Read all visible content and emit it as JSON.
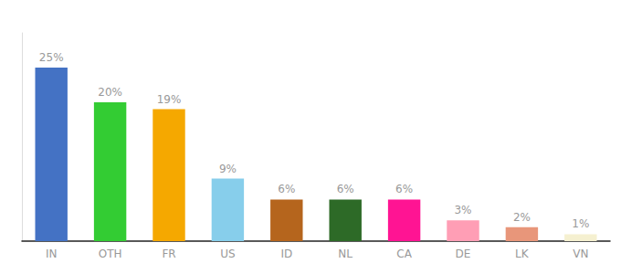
{
  "chart_data": {
    "type": "bar",
    "categories": [
      "IN",
      "OTH",
      "FR",
      "US",
      "ID",
      "NL",
      "CA",
      "DE",
      "LK",
      "VN"
    ],
    "values": [
      25,
      20,
      19,
      9,
      6,
      6,
      6,
      3,
      2,
      1
    ],
    "value_labels": [
      "25%",
      "20%",
      "19%",
      "9%",
      "6%",
      "6%",
      "6%",
      "3%",
      "2%",
      "1%"
    ],
    "colors": [
      "#4472c4",
      "#33cc33",
      "#f5a800",
      "#87ceeb",
      "#b5651d",
      "#2d6a27",
      "#ff1493",
      "#ff9eb5",
      "#e8967a",
      "#f5f0d0"
    ],
    "ylim": [
      0,
      30
    ],
    "grid": false,
    "data_labels": true,
    "tick_labels": "x"
  }
}
